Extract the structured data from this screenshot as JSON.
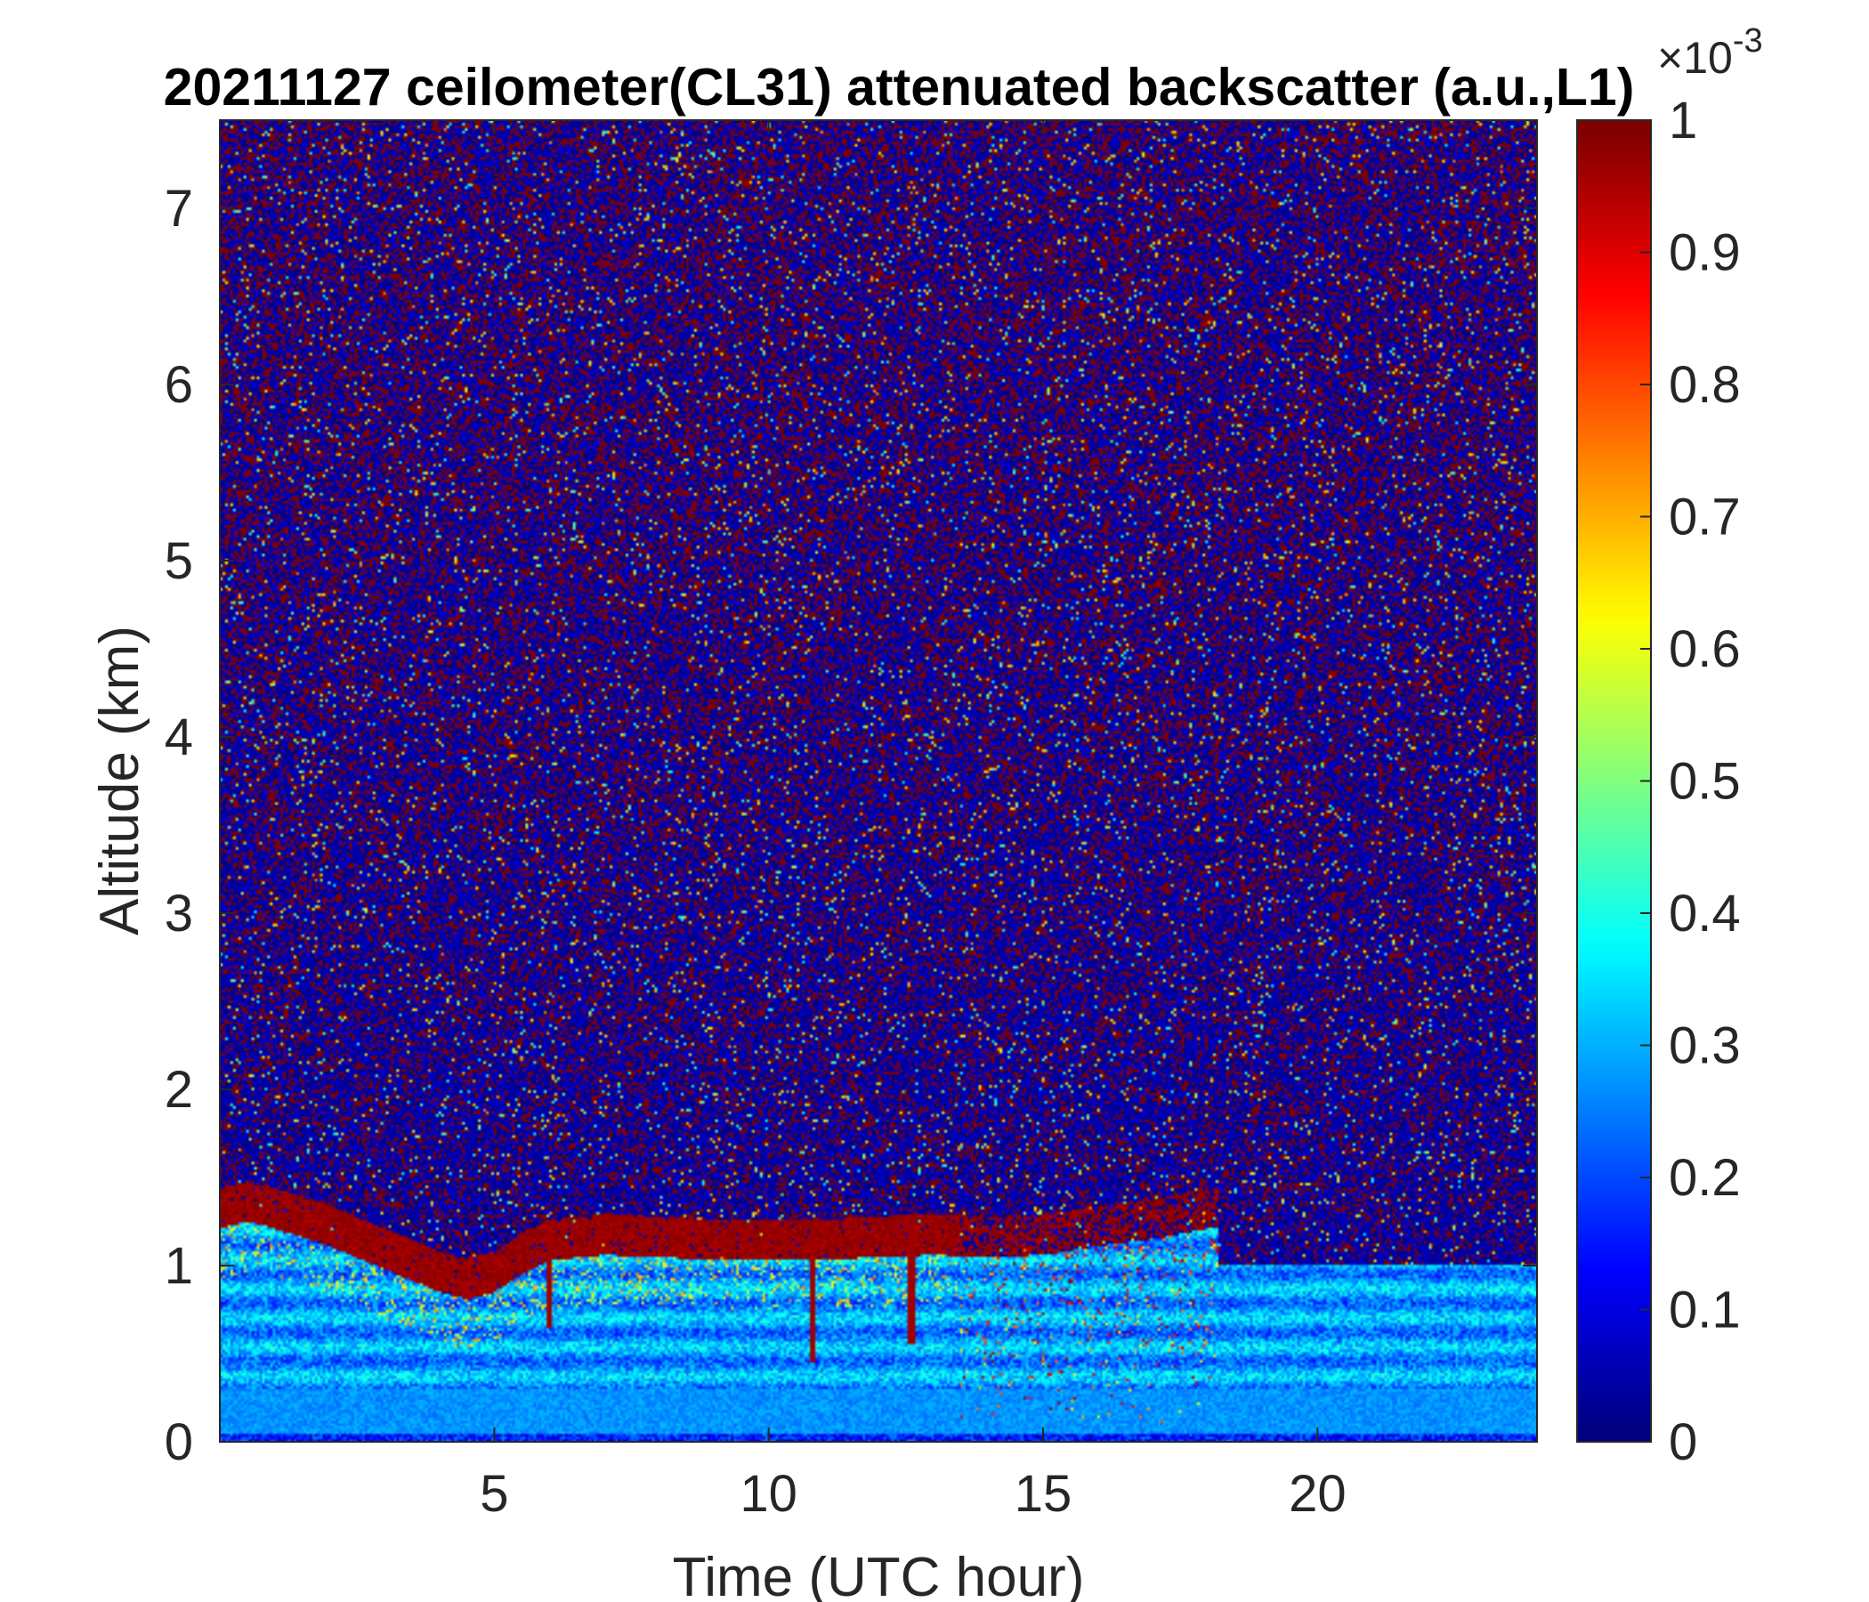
{
  "chart_data": {
    "type": "heatmap",
    "title": "20211127 ceilometer(CL31) attenuated backscatter (a.u.,L1)",
    "xlabel": "Time (UTC hour)",
    "ylabel": "Altitude (km)",
    "xlim": [
      0,
      24
    ],
    "ylim": [
      0,
      7.5
    ],
    "xticks": [
      5,
      10,
      15,
      20
    ],
    "yticks": [
      0,
      1,
      2,
      3,
      4,
      5,
      6,
      7
    ],
    "colorbar": {
      "colormap": "jet",
      "clim": [
        0,
        0.001
      ],
      "ticks": [
        0,
        0.1,
        0.2,
        0.3,
        0.4,
        0.5,
        0.6,
        0.7,
        0.8,
        0.9,
        1
      ],
      "exponent_label": "×10",
      "exponent_power": "-3"
    },
    "boundary_layer_top_km": {
      "time_hour": [
        0,
        0.5,
        1,
        2,
        3,
        4,
        4.5,
        5,
        5.5,
        6,
        7,
        8,
        9,
        10,
        11,
        12,
        13,
        14,
        15,
        16,
        17,
        17.5,
        18
      ],
      "altitude_km": [
        1.38,
        1.42,
        1.38,
        1.28,
        1.15,
        1.02,
        0.98,
        1.02,
        1.12,
        1.2,
        1.23,
        1.22,
        1.2,
        1.2,
        1.2,
        1.22,
        1.23,
        1.22,
        1.23,
        1.28,
        1.32,
        1.35,
        1.38
      ]
    },
    "features": [
      {
        "type": "fallstreak",
        "time_hour": 10.8,
        "bottom_km": 0.45
      },
      {
        "type": "fallstreak",
        "time_hour": 12.6,
        "bottom_km": 0.55
      },
      {
        "type": "fallstreak",
        "time_hour": 6.0,
        "bottom_km": 0.65
      }
    ],
    "grid": false,
    "legend": "none"
  }
}
